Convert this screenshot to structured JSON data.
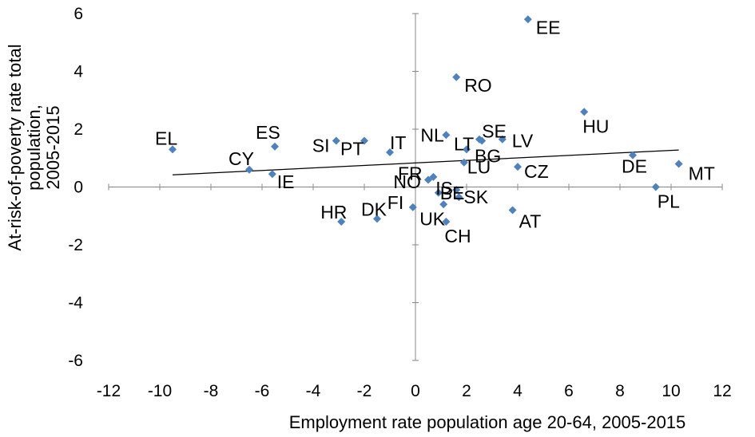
{
  "chart_data": {
    "type": "scatter",
    "xlabel": "Employment rate population age 20-64, 2005-2015",
    "ylabel_lines": [
      "At-risk-of-poverty rate total",
      "population,",
      "2005-2015"
    ],
    "xlim": [
      -12,
      12
    ],
    "ylim": [
      -6,
      6
    ],
    "xticks": [
      -12,
      -10,
      -8,
      -6,
      -4,
      -2,
      0,
      2,
      4,
      6,
      8,
      10,
      12
    ],
    "yticks": [
      -6,
      -4,
      -2,
      0,
      2,
      4,
      6
    ],
    "grid": false,
    "legend": "none",
    "marker_color": "#4f81bd",
    "trendline": {
      "x": [
        -9.5,
        10.3
      ],
      "y": [
        0.42,
        1.28
      ],
      "color": "#000000"
    },
    "points": [
      {
        "label": "EE",
        "x": 4.4,
        "y": 5.8
      },
      {
        "label": "RO",
        "x": 1.6,
        "y": 3.8
      },
      {
        "label": "HU",
        "x": 6.6,
        "y": 2.6
      },
      {
        "label": "EL",
        "x": -9.5,
        "y": 1.3
      },
      {
        "label": "ES",
        "x": -5.5,
        "y": 1.4
      },
      {
        "label": "CY",
        "x": -6.5,
        "y": 0.6
      },
      {
        "label": "IE",
        "x": -5.6,
        "y": 0.45
      },
      {
        "label": "SI",
        "x": -3.1,
        "y": 1.6
      },
      {
        "label": "PT",
        "x": -2.0,
        "y": 1.6
      },
      {
        "label": "IT",
        "x": -1.0,
        "y": 1.2
      },
      {
        "label": "NL",
        "x": 1.2,
        "y": 1.8
      },
      {
        "label": "LT",
        "x": 2.5,
        "y": 1.65
      },
      {
        "label": "SE",
        "x": 2.6,
        "y": 1.6
      },
      {
        "label": "LV",
        "x": 3.4,
        "y": 1.65
      },
      {
        "label": "BG",
        "x": 2.0,
        "y": 1.3
      },
      {
        "label": "NO",
        "x": 0.7,
        "y": 0.35
      },
      {
        "label": "LU",
        "x": 1.9,
        "y": 0.85
      },
      {
        "label": "CZ",
        "x": 4.0,
        "y": 0.7
      },
      {
        "label": "DE",
        "x": 8.5,
        "y": 1.1
      },
      {
        "label": "MT",
        "x": 10.3,
        "y": 0.8
      },
      {
        "label": "PL",
        "x": 9.4,
        "y": 0.0
      },
      {
        "label": "FR",
        "x": 0.5,
        "y": 0.25
      },
      {
        "label": "BE",
        "x": 0.9,
        "y": -0.2
      },
      {
        "label": "IS",
        "x": 1.6,
        "y": -0.1
      },
      {
        "label": "SK",
        "x": 1.7,
        "y": -0.35
      },
      {
        "label": "FI",
        "x": -0.1,
        "y": -0.7
      },
      {
        "label": "UK",
        "x": 1.1,
        "y": -0.6
      },
      {
        "label": "CH",
        "x": 1.2,
        "y": -1.2
      },
      {
        "label": "AT",
        "x": 3.8,
        "y": -0.8
      },
      {
        "label": "HR",
        "x": -2.9,
        "y": -1.2
      },
      {
        "label": "DK",
        "x": -1.5,
        "y": -1.1
      }
    ]
  }
}
